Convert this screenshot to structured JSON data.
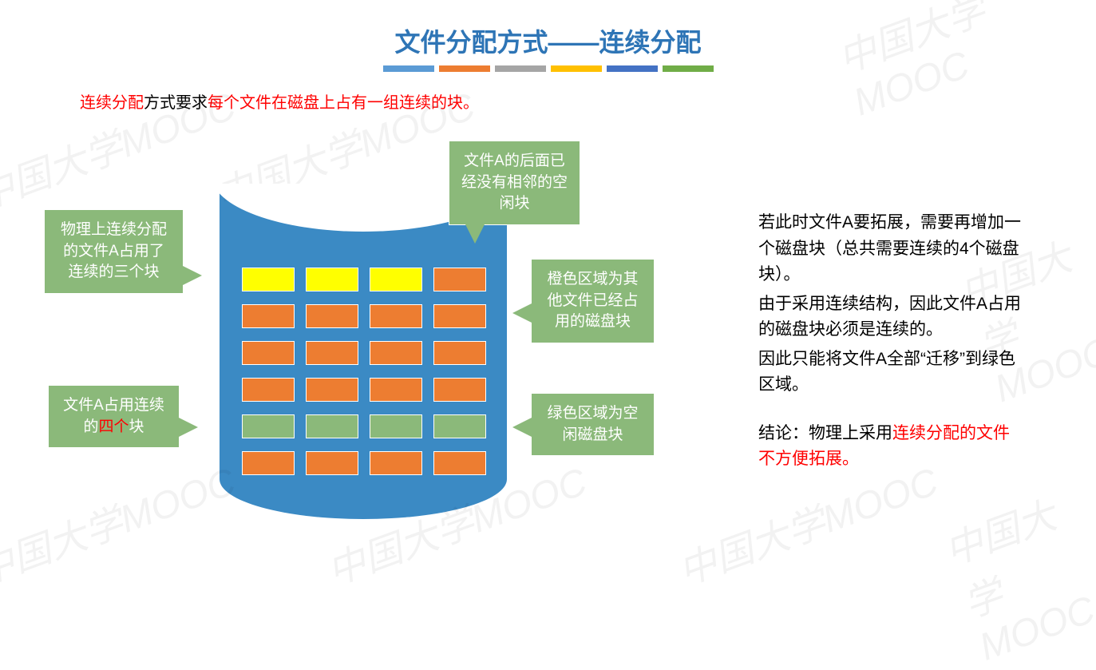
{
  "title": {
    "text": "文件分配方式——连续分配",
    "color": "#2e75b6",
    "underline_colors": [
      "#5b9bd5",
      "#ed7d31",
      "#a5a5a5",
      "#ffc000",
      "#4472c4",
      "#70ad47"
    ]
  },
  "intro": {
    "seg1": "连续分配",
    "seg2": "方式要求",
    "seg3": "每个文件在磁盘上占有一组连续的块。",
    "color_highlight": "#ff0000",
    "color_normal": "#000000"
  },
  "disk": {
    "body_color": "#3b8ac4",
    "rows": 6,
    "cols": 4,
    "block_colors": {
      "yellow": "#ffff00",
      "orange": "#ed7d31",
      "green": "#8bb97a"
    },
    "layout": [
      [
        "yellow",
        "yellow",
        "yellow",
        "orange"
      ],
      [
        "orange",
        "orange",
        "orange",
        "orange"
      ],
      [
        "orange",
        "orange",
        "orange",
        "orange"
      ],
      [
        "orange",
        "orange",
        "orange",
        "orange"
      ],
      [
        "green",
        "green",
        "green",
        "green"
      ],
      [
        "orange",
        "orange",
        "orange",
        "orange"
      ]
    ]
  },
  "callouts": {
    "c1": "物理上连续分配的文件A占用了连续的三个块",
    "c2_pre": "文件A占用连续的",
    "c2_hl": "四个",
    "c2_post": "块",
    "c3": "文件A的后面已经没有相邻的空闲块",
    "c4": "橙色区域为其他文件已经占用的磁盘块",
    "c5": "绿色区域为空闲磁盘块",
    "bg_color": "#8bb97a",
    "text_color": "#ffffff"
  },
  "side": {
    "p1": "若此时文件A要拓展，需要再增加一个磁盘块（总共需要连续的4个磁盘块）。",
    "p2": "由于采用连续结构，因此文件A占用的磁盘块必须是连续的。",
    "p3": "因此只能将文件A全部“迁移”到绿色区域。",
    "p4_pre": "结论：物理上采用",
    "p4_hl": "连续分配的文件不方便拓展。"
  },
  "watermark": "中国大学MOOC"
}
